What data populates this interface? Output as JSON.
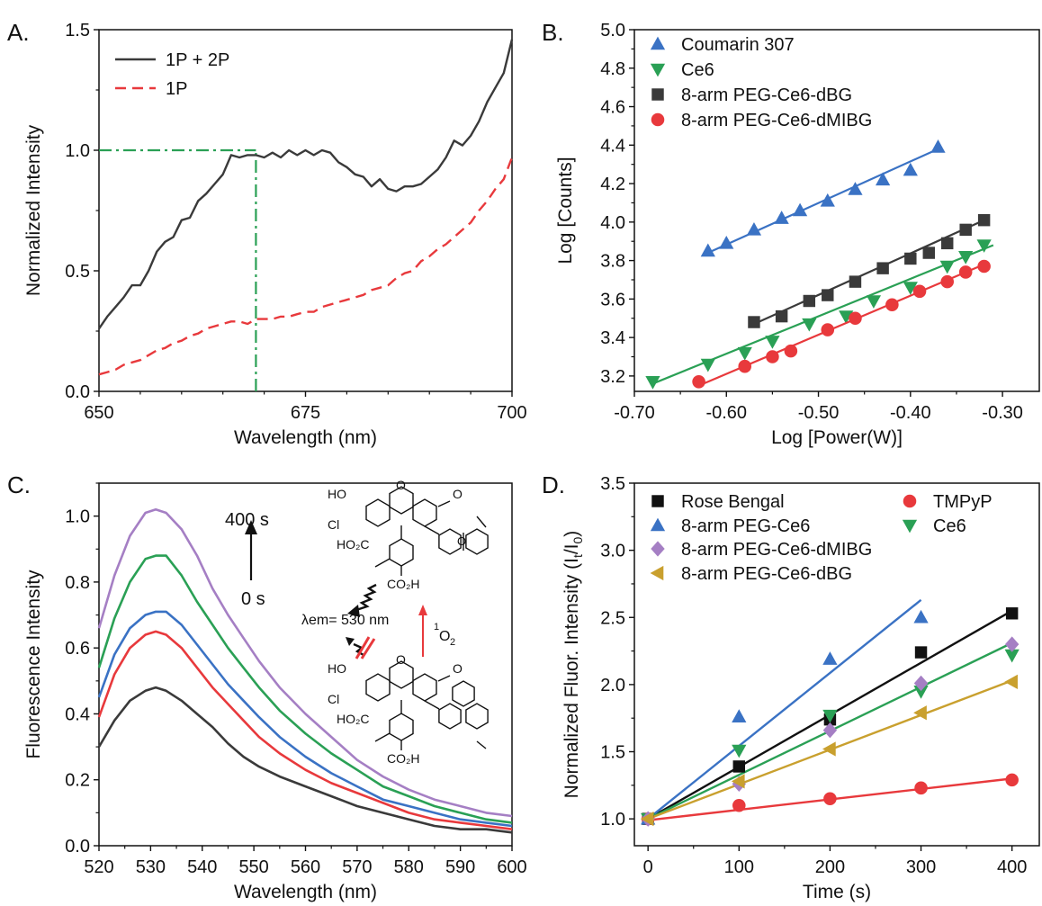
{
  "figure_name": "four-panel-figure",
  "colors": {
    "axis": "#111111",
    "black_gray": "#3a3a3a",
    "red": "#e8393c",
    "green": "#2aa055",
    "blue": "#3a72c4",
    "purple": "#a57fc4",
    "gold": "#c9a02e",
    "black": "#111111"
  },
  "chart_data": [
    {
      "id": "A",
      "panel_letter": "A.",
      "type": "line",
      "xlabel": "Wavelength (nm)",
      "ylabel": "Normalized Intensity",
      "xlim": [
        650,
        700
      ],
      "ylim": [
        0,
        1.5
      ],
      "xticks": [
        650,
        675,
        700
      ],
      "yticks": [
        0.0,
        0.5,
        1.0,
        1.5
      ],
      "ytick_labels": [
        "0.0",
        "0.5",
        "1.0",
        "1.5"
      ],
      "legend": "top-left",
      "series": [
        {
          "name": "1P + 2P",
          "color": "#3a3a3a",
          "style": "solid",
          "x": [
            650,
            651,
            652,
            653,
            654,
            655,
            656,
            657,
            658,
            659,
            660,
            661,
            662,
            663,
            664,
            665,
            666,
            667,
            668,
            669,
            670,
            671,
            672,
            673,
            674,
            675,
            676,
            677,
            678,
            679,
            680,
            681,
            682,
            683,
            684,
            685,
            686,
            687,
            688,
            689,
            690,
            691,
            692,
            693,
            694,
            695,
            696,
            697,
            698,
            699,
            700
          ],
          "y": [
            0.26,
            0.31,
            0.35,
            0.39,
            0.44,
            0.44,
            0.5,
            0.58,
            0.62,
            0.64,
            0.71,
            0.72,
            0.79,
            0.82,
            0.86,
            0.9,
            0.98,
            0.97,
            0.98,
            0.98,
            0.97,
            0.99,
            0.97,
            1.0,
            0.98,
            1.0,
            0.98,
            1.0,
            0.99,
            0.95,
            0.93,
            0.9,
            0.89,
            0.85,
            0.88,
            0.84,
            0.83,
            0.85,
            0.85,
            0.86,
            0.89,
            0.92,
            0.97,
            1.04,
            1.02,
            1.06,
            1.12,
            1.2,
            1.26,
            1.32,
            1.46
          ]
        },
        {
          "name": "1P",
          "color": "#e8393c",
          "style": "dashed",
          "x": [
            650,
            651,
            652,
            653,
            654,
            655,
            656,
            657,
            658,
            659,
            660,
            661,
            662,
            663,
            664,
            665,
            666,
            667,
            668,
            669,
            670,
            671,
            672,
            673,
            674,
            675,
            676,
            677,
            678,
            679,
            680,
            681,
            682,
            683,
            684,
            685,
            686,
            687,
            688,
            689,
            690,
            691,
            692,
            693,
            694,
            695,
            696,
            697,
            698,
            699,
            700
          ],
          "y": [
            0.07,
            0.08,
            0.09,
            0.11,
            0.12,
            0.13,
            0.15,
            0.17,
            0.18,
            0.2,
            0.21,
            0.23,
            0.24,
            0.26,
            0.27,
            0.28,
            0.29,
            0.29,
            0.28,
            0.3,
            0.3,
            0.3,
            0.31,
            0.31,
            0.32,
            0.33,
            0.33,
            0.35,
            0.36,
            0.37,
            0.38,
            0.39,
            0.4,
            0.42,
            0.43,
            0.44,
            0.47,
            0.49,
            0.5,
            0.54,
            0.56,
            0.59,
            0.61,
            0.64,
            0.67,
            0.7,
            0.75,
            0.79,
            0.84,
            0.88,
            0.97
          ]
        }
      ],
      "guide_lines": [
        {
          "kind": "h",
          "color": "#2aa055",
          "x_from": 650,
          "x_to": 669,
          "y": 1.0
        },
        {
          "kind": "v",
          "color": "#2aa055",
          "x": 669,
          "y_from": 0,
          "y_to": 1.0
        }
      ]
    },
    {
      "id": "B",
      "panel_letter": "B.",
      "type": "scatter",
      "xlabel": "Log [Power(W)]",
      "ylabel": "Log [Counts]",
      "xlim": [
        -0.7,
        -0.26
      ],
      "ylim": [
        3.12,
        5.0
      ],
      "xticks": [
        -0.7,
        -0.6,
        -0.5,
        -0.4,
        -0.3
      ],
      "xtick_labels": [
        "-0.70",
        "-0.60",
        "-0.50",
        "-0.40",
        "-0.30"
      ],
      "yticks": [
        3.2,
        3.4,
        3.6,
        3.8,
        4.0,
        4.2,
        4.4,
        4.6,
        4.8,
        5.0
      ],
      "ytick_labels": [
        "3.2",
        "3.4",
        "3.6",
        "3.8",
        "4.0",
        "4.2",
        "4.4",
        "4.6",
        "4.8",
        "5.0"
      ],
      "legend": "top-left",
      "series": [
        {
          "name": "Coumarin 307",
          "color": "#3a72c4",
          "marker": "triangle-up",
          "x": [
            -0.62,
            -0.6,
            -0.57,
            -0.54,
            -0.52,
            -0.49,
            -0.46,
            -0.43,
            -0.4,
            -0.37
          ],
          "y": [
            3.85,
            3.89,
            3.96,
            4.02,
            4.06,
            4.11,
            4.17,
            4.22,
            4.27,
            4.39
          ],
          "fit": [
            [
              -0.62,
              3.84
            ],
            [
              -0.37,
              4.38
            ]
          ]
        },
        {
          "name": "Ce6",
          "color": "#2aa055",
          "marker": "triangle-down",
          "x": [
            -0.68,
            -0.62,
            -0.58,
            -0.55,
            -0.51,
            -0.47,
            -0.44,
            -0.4,
            -0.36,
            -0.34,
            -0.32
          ],
          "y": [
            3.17,
            3.26,
            3.32,
            3.38,
            3.47,
            3.51,
            3.59,
            3.66,
            3.77,
            3.82,
            3.88
          ],
          "fit": [
            [
              -0.68,
              3.16
            ],
            [
              -0.31,
              3.88
            ]
          ]
        },
        {
          "name": "8-arm PEG-Ce6-dBG",
          "color": "#3a3a3a",
          "marker": "square",
          "x": [
            -0.57,
            -0.54,
            -0.51,
            -0.49,
            -0.46,
            -0.43,
            -0.4,
            -0.38,
            -0.36,
            -0.34,
            -0.32
          ],
          "y": [
            3.48,
            3.51,
            3.59,
            3.62,
            3.69,
            3.76,
            3.81,
            3.84,
            3.89,
            3.96,
            4.01
          ],
          "fit": [
            [
              -0.57,
              3.47
            ],
            [
              -0.32,
              4.01
            ]
          ]
        },
        {
          "name": "8-arm PEG-Ce6-dMIBG",
          "color": "#e8393c",
          "marker": "circle",
          "x": [
            -0.63,
            -0.58,
            -0.55,
            -0.53,
            -0.49,
            -0.46,
            -0.42,
            -0.39,
            -0.36,
            -0.34,
            -0.32
          ],
          "y": [
            3.17,
            3.25,
            3.3,
            3.33,
            3.44,
            3.5,
            3.57,
            3.64,
            3.69,
            3.74,
            3.77
          ],
          "fit": [
            [
              -0.63,
              3.15
            ],
            [
              -0.32,
              3.78
            ]
          ]
        }
      ]
    },
    {
      "id": "C",
      "panel_letter": "C.",
      "type": "line",
      "xlabel": "Wavelength (nm)",
      "ylabel": "Fluorescence Intensity",
      "xlim": [
        520,
        600
      ],
      "ylim": [
        0.0,
        1.1
      ],
      "xticks": [
        520,
        530,
        540,
        550,
        560,
        570,
        580,
        590,
        600
      ],
      "yticks": [
        0.0,
        0.2,
        0.4,
        0.6,
        0.8,
        1.0
      ],
      "ytick_labels": [
        "0.0",
        "0.2",
        "0.4",
        "0.6",
        "0.8",
        "1.0"
      ],
      "annotations": {
        "time_top": "400 s",
        "time_bottom": "0 s",
        "emission_label": "λem= 530 nm",
        "singlet_oxygen_sup": "1",
        "singlet_oxygen_main": "O",
        "singlet_oxygen_sub": "2",
        "mol_oh": "HO",
        "mol_cl": "Cl",
        "mol_co2h_left": "HO₂C",
        "mol_co2h_bottom": "CO₂H",
        "mol_keto": "O",
        "mol_ring_o": "O"
      },
      "series": [
        {
          "color": "#a57fc4",
          "x": [
            520,
            523,
            526,
            529,
            531,
            533,
            536,
            539,
            542,
            545,
            548,
            551,
            555,
            560,
            565,
            570,
            575,
            580,
            585,
            590,
            595,
            600
          ],
          "y": [
            0.66,
            0.82,
            0.94,
            1.01,
            1.02,
            1.01,
            0.96,
            0.88,
            0.78,
            0.7,
            0.63,
            0.56,
            0.48,
            0.4,
            0.33,
            0.26,
            0.21,
            0.17,
            0.14,
            0.12,
            0.1,
            0.09
          ]
        },
        {
          "color": "#2aa055",
          "x": [
            520,
            523,
            526,
            529,
            531,
            533,
            536,
            539,
            542,
            545,
            548,
            551,
            555,
            560,
            565,
            570,
            575,
            580,
            585,
            590,
            595,
            600
          ],
          "y": [
            0.54,
            0.69,
            0.8,
            0.87,
            0.88,
            0.88,
            0.82,
            0.74,
            0.67,
            0.6,
            0.54,
            0.48,
            0.41,
            0.34,
            0.28,
            0.23,
            0.18,
            0.15,
            0.12,
            0.1,
            0.08,
            0.07
          ]
        },
        {
          "color": "#3a72c4",
          "x": [
            520,
            523,
            526,
            529,
            531,
            533,
            536,
            539,
            542,
            545,
            548,
            551,
            555,
            560,
            565,
            570,
            575,
            580,
            585,
            590,
            595,
            600
          ],
          "y": [
            0.45,
            0.58,
            0.66,
            0.7,
            0.71,
            0.71,
            0.67,
            0.61,
            0.55,
            0.49,
            0.44,
            0.39,
            0.33,
            0.27,
            0.22,
            0.18,
            0.14,
            0.12,
            0.1,
            0.08,
            0.07,
            0.06
          ]
        },
        {
          "color": "#e8393c",
          "x": [
            520,
            523,
            526,
            529,
            531,
            533,
            536,
            539,
            542,
            545,
            548,
            551,
            555,
            560,
            565,
            570,
            575,
            580,
            585,
            590,
            595,
            600
          ],
          "y": [
            0.39,
            0.52,
            0.6,
            0.64,
            0.65,
            0.64,
            0.6,
            0.54,
            0.48,
            0.43,
            0.38,
            0.33,
            0.28,
            0.23,
            0.19,
            0.16,
            0.13,
            0.1,
            0.08,
            0.07,
            0.06,
            0.05
          ]
        },
        {
          "color": "#3a3a3a",
          "x": [
            520,
            523,
            526,
            529,
            531,
            533,
            536,
            539,
            542,
            545,
            548,
            551,
            555,
            560,
            565,
            570,
            575,
            580,
            585,
            590,
            595,
            600
          ],
          "y": [
            0.3,
            0.38,
            0.44,
            0.47,
            0.48,
            0.47,
            0.44,
            0.4,
            0.36,
            0.31,
            0.27,
            0.24,
            0.21,
            0.18,
            0.15,
            0.12,
            0.1,
            0.08,
            0.06,
            0.05,
            0.05,
            0.04
          ]
        }
      ]
    },
    {
      "id": "D",
      "panel_letter": "D.",
      "type": "scatter",
      "xlabel": "Time (s)",
      "ylabel_main": "Normalized Fluor. Intensity (I",
      "ylabel_sub1": "t",
      "ylabel_mid": "/I",
      "ylabel_sub2": "0",
      "ylabel_end": ")",
      "xlim": [
        -15,
        430
      ],
      "ylim": [
        0.8,
        3.5
      ],
      "xticks": [
        0,
        100,
        200,
        300,
        400
      ],
      "yticks": [
        1.0,
        1.5,
        2.0,
        2.5,
        3.0,
        3.5
      ],
      "ytick_labels": [
        "1.0",
        "1.5",
        "2.0",
        "2.5",
        "3.0",
        "3.5"
      ],
      "legend": "top-left",
      "series": [
        {
          "name": "Rose Bengal",
          "color": "#111111",
          "marker": "square",
          "x": [
            0,
            100,
            200,
            300,
            400
          ],
          "y": [
            1.0,
            1.39,
            1.74,
            2.24,
            2.53
          ],
          "fit": [
            [
              0,
              1.0
            ],
            [
              400,
              2.55
            ]
          ]
        },
        {
          "name": "TMPyP",
          "color": "#e8393c",
          "marker": "circle",
          "x": [
            0,
            100,
            200,
            300,
            400
          ],
          "y": [
            1.0,
            1.1,
            1.15,
            1.23,
            1.29
          ],
          "fit": [
            [
              0,
              0.99
            ],
            [
              400,
              1.3
            ]
          ]
        },
        {
          "name": "8-arm PEG-Ce6",
          "color": "#3a72c4",
          "marker": "triangle-up",
          "x": [
            0,
            100,
            200,
            300
          ],
          "y": [
            1.0,
            1.76,
            2.19,
            2.5
          ],
          "fit": [
            [
              0,
              1.0
            ],
            [
              300,
              2.63
            ]
          ]
        },
        {
          "name": "Ce6",
          "color": "#2aa055",
          "marker": "triangle-down",
          "x": [
            0,
            100,
            200,
            300,
            400
          ],
          "y": [
            1.0,
            1.51,
            1.77,
            1.95,
            2.22
          ],
          "fit": [
            [
              0,
              1.0
            ],
            [
              400,
              2.31
            ]
          ]
        },
        {
          "name": "8-arm PEG-Ce6-dMIBG",
          "color": "#a57fc4",
          "marker": "diamond",
          "x": [
            0,
            100,
            200,
            300,
            400
          ],
          "y": [
            1.0,
            1.26,
            1.66,
            2.01,
            2.3
          ],
          "fit": null
        },
        {
          "name": "8-arm PEG-Ce6-dBG",
          "color": "#c9a02e",
          "marker": "triangle-left",
          "x": [
            0,
            100,
            200,
            300,
            400
          ],
          "y": [
            1.0,
            1.28,
            1.52,
            1.79,
            2.02
          ],
          "fit": [
            [
              0,
              1.0
            ],
            [
              400,
              2.03
            ]
          ]
        }
      ]
    }
  ]
}
